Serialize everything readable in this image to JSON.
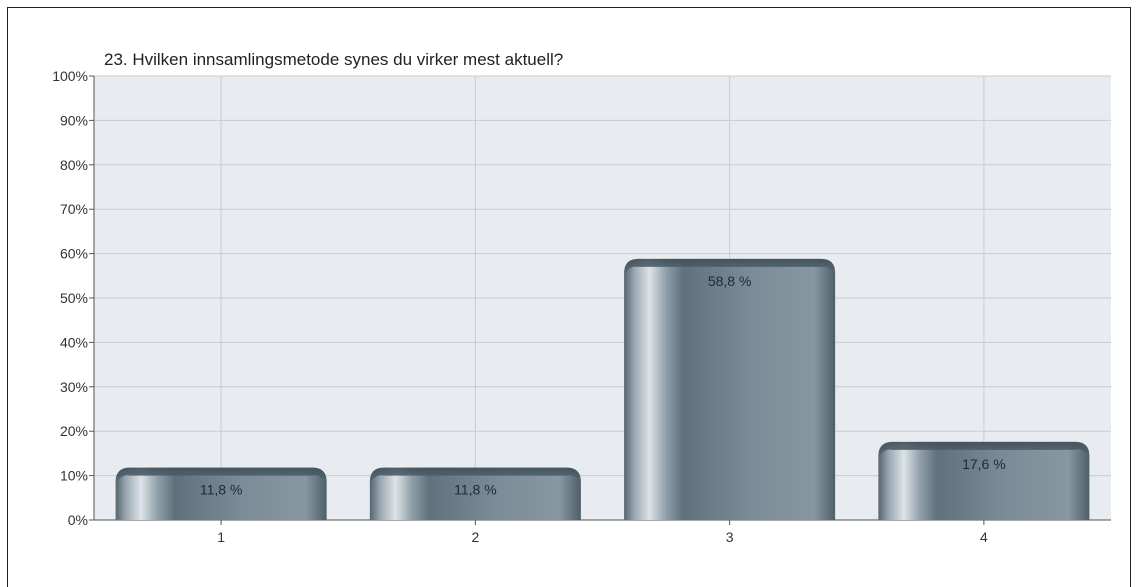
{
  "chart_data": {
    "type": "bar",
    "title": "23. Hvilken innsamlingsmetode synes du virker mest aktuell?",
    "xlabel": "",
    "ylabel": "",
    "categories": [
      "1",
      "2",
      "3",
      "4"
    ],
    "values": [
      11.8,
      11.8,
      58.8,
      17.6
    ],
    "value_labels": [
      "11,8 %",
      "11,8 %",
      "58,8 %",
      "17,6 %"
    ],
    "ylim": [
      0,
      100
    ],
    "yticks": [
      0,
      10,
      20,
      30,
      40,
      50,
      60,
      70,
      80,
      90,
      100
    ],
    "ytick_labels": [
      "0%",
      "10%",
      "20%",
      "30%",
      "40%",
      "50%",
      "60%",
      "70%",
      "80%",
      "90%",
      "100%"
    ],
    "grid": true,
    "legend": "none",
    "colors": {
      "plot_bg": "#e8ebef",
      "grid": "#c9cdd2",
      "bar_dark": "#4e5f6b",
      "bar_mid": "#8a9aa5",
      "bar_light": "#c7d0d6"
    }
  }
}
